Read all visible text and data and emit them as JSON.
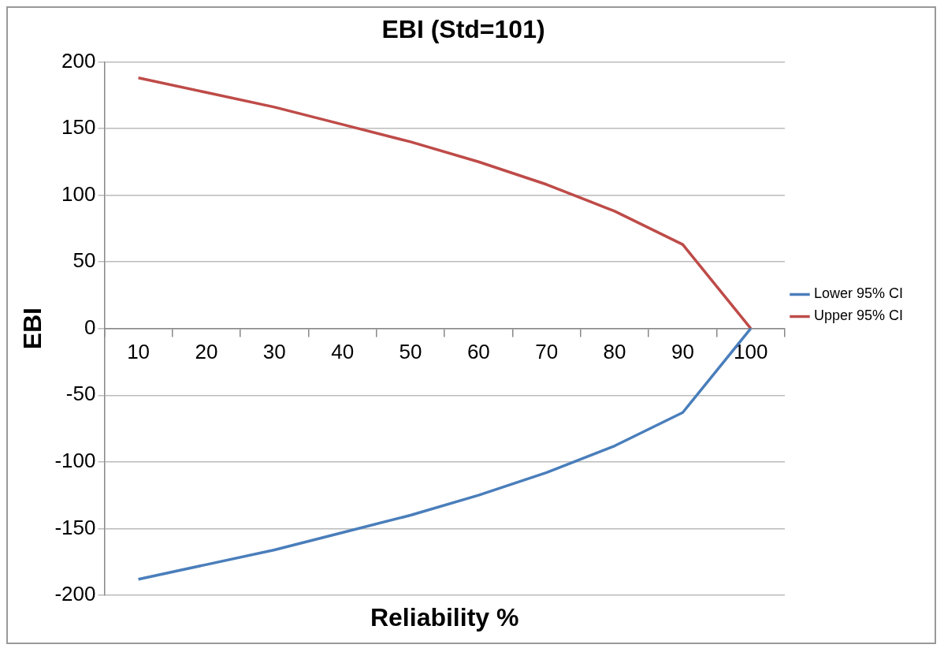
{
  "chart_data": {
    "type": "line",
    "title": "EBI (Std=101)",
    "xlabel": "Reliability %",
    "ylabel": "EBI",
    "categories": [
      "10",
      "20",
      "30",
      "40",
      "50",
      "60",
      "70",
      "80",
      "90",
      "100"
    ],
    "series": [
      {
        "name": "Lower 95% CI",
        "color": "#4a7ebb",
        "values": [
          -188,
          -177,
          -166,
          -153,
          -140,
          -125,
          -108,
          -88,
          -63,
          0
        ]
      },
      {
        "name": "Upper 95% CI",
        "color": "#be4b48",
        "values": [
          188,
          177,
          166,
          153,
          140,
          125,
          108,
          88,
          63,
          0
        ]
      }
    ],
    "ylim": [
      -200,
      200
    ],
    "yticks": [
      -200,
      -150,
      -100,
      -50,
      0,
      50,
      100,
      150,
      200
    ],
    "grid": "y",
    "legend": "right",
    "marker": "none",
    "line_style": "solid"
  }
}
